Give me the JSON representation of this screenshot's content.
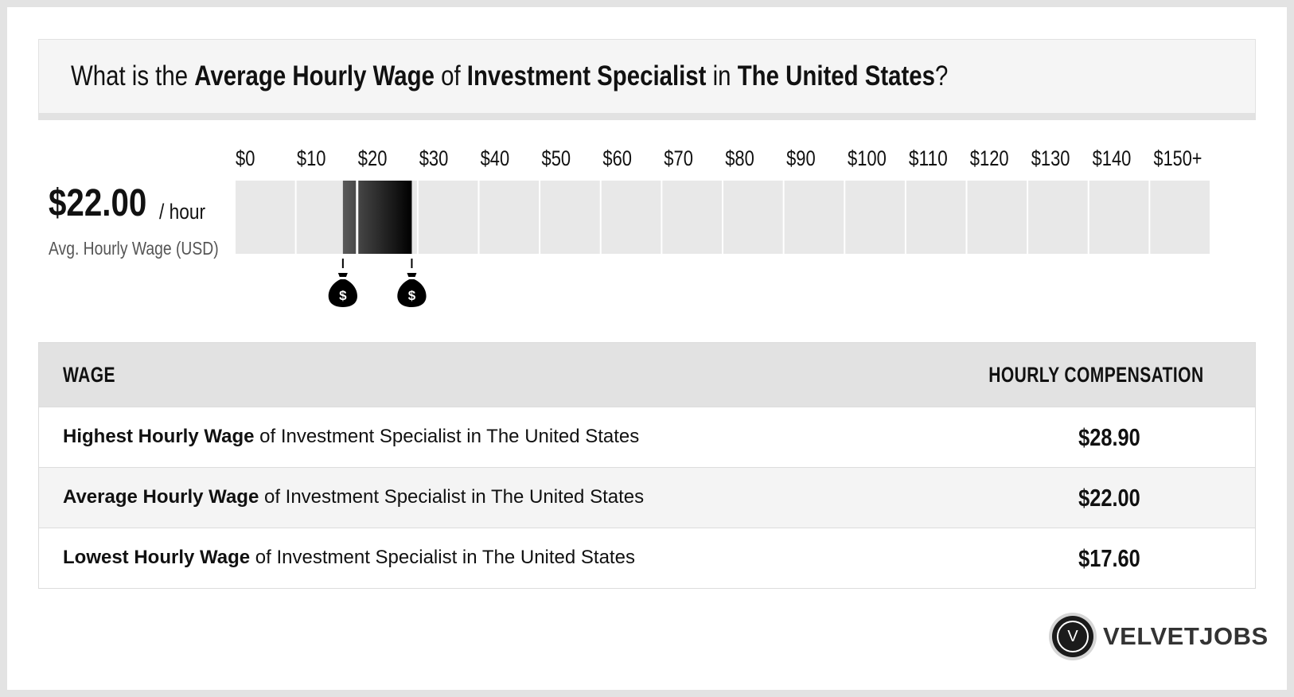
{
  "header": {
    "q_prefix": "What is the ",
    "q_metric": "Average Hourly Wage",
    "q_of": " of ",
    "q_job": "Investment Specialist",
    "q_in": " in ",
    "q_location": "The United States",
    "q_suffix": "?"
  },
  "summary": {
    "value": "$22.00",
    "unit": "/ hour",
    "caption": "Avg. Hourly Wage (USD)"
  },
  "chart_data": {
    "type": "bar",
    "title": "",
    "xlabel": "",
    "ylabel": "",
    "tick_labels": [
      "$0",
      "$10",
      "$20",
      "$30",
      "$40",
      "$50",
      "$60",
      "$70",
      "$80",
      "$90",
      "$100",
      "$110",
      "$120",
      "$130",
      "$140",
      "$150+"
    ],
    "xlim": [
      0,
      150
    ],
    "range": {
      "low": 17.6,
      "average": 22.0,
      "high": 28.9
    },
    "markers": [
      {
        "value": 17.6,
        "icon": "money-bag-icon",
        "symbol": "$"
      },
      {
        "value": 28.9,
        "icon": "money-bag-icon",
        "symbol": "$"
      }
    ],
    "colors": {
      "track": "#e8e8e8",
      "range_dark": "#000000",
      "range_light": "#5a5a5a"
    }
  },
  "table": {
    "col_wage": "WAGE",
    "col_comp": "HOURLY COMPENSATION",
    "rows": [
      {
        "strong": "Highest Hourly Wage",
        "rest": " of Investment Specialist in The United States",
        "value": "$28.90"
      },
      {
        "strong": "Average Hourly Wage",
        "rest": " of Investment Specialist in The United States",
        "value": "$22.00"
      },
      {
        "strong": "Lowest Hourly Wage",
        "rest": " of Investment Specialist in The United States",
        "value": "$17.60"
      }
    ]
  },
  "logo": {
    "letter": "V",
    "name": "VELVETJOBS"
  }
}
